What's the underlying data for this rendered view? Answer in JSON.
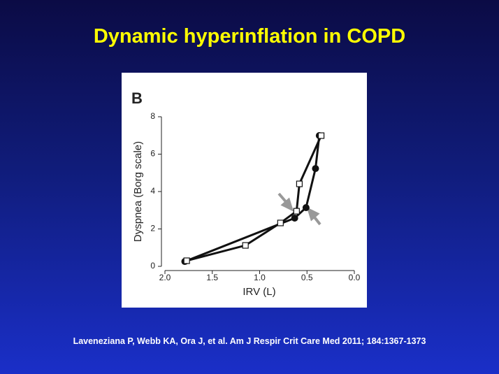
{
  "title": "Dynamic hyperinflation in COPD",
  "citation": "Laveneziana P, Webb KA, Ora J, et al. Am J Respir Crit Care Med 2011; 184:1367-1373",
  "chart_data": {
    "type": "line",
    "panel_label": "B",
    "x_label": "IRV (L)",
    "y_label": "Dyspnea (Borg scale)",
    "xlim": [
      2,
      0
    ],
    "ylim": [
      0,
      8
    ],
    "xticks": [
      {
        "value": 2,
        "label": "2.0"
      },
      1.5,
      {
        "value": 1,
        "label": "1.0"
      },
      0.5,
      {
        "value": 0,
        "label": "0.0"
      }
    ],
    "yticks": [
      0,
      2,
      4,
      6,
      8
    ],
    "series": [
      {
        "color": "#111111",
        "marker": "circle",
        "x": [
          1.79,
          0.63,
          0.51,
          0.41,
          0.37
        ],
        "values": [
          0.26,
          2.58,
          3.14,
          5.23,
          6.99
        ]
      },
      {
        "color": "#111111",
        "marker": "square",
        "x": [
          1.77,
          1.15,
          0.78,
          0.61,
          0.58,
          0.35
        ],
        "values": [
          0.3,
          1.12,
          2.32,
          2.95,
          4.41,
          6.99
        ]
      }
    ]
  }
}
